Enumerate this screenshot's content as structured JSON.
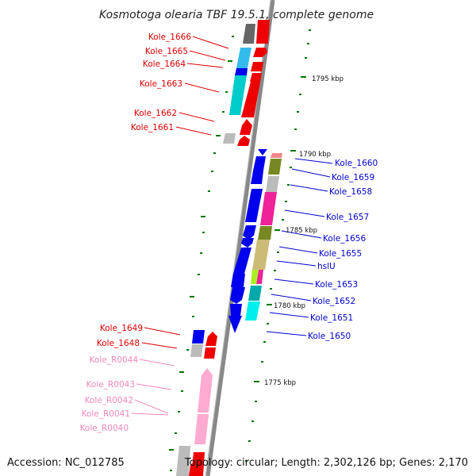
{
  "title": "Kosmotoga olearia TBF 19.5.1, complete genome",
  "footer": {
    "accession": "Accession: NC_012785",
    "summary": "Topology: circular; Length: 2,302,126 bp; Genes: 2,170"
  },
  "kbp_labels": {
    "k1795": "1795 kbp",
    "k1790": "1790 kbp",
    "k1785": "1785 kbp",
    "k1780": "1780 kbp",
    "k1775": "1775 kbp"
  },
  "colors": {
    "red_label": "#dd0000",
    "blue_label": "#0000cc",
    "pink_label": "#ee88bb",
    "backbone": "#888888",
    "tick": "#006600"
  },
  "genes_left": {
    "kole_1666": "Kole_1666",
    "kole_1665": "Kole_1665",
    "kole_1664": "Kole_1664",
    "kole_1663": "Kole_1663",
    "kole_1662": "Kole_1662",
    "kole_1661": "Kole_1661",
    "kole_1649": "Kole_1649",
    "kole_1648": "Kole_1648"
  },
  "rna_left": {
    "r0044": "Kole_R0044",
    "r0043": "Kole_R0043",
    "r0042": "Kole_R0042",
    "r0041": "Kole_R0041",
    "r0040": "Kole_R0040"
  },
  "genes_right": {
    "kole_1660": "Kole_1660",
    "kole_1659": "Kole_1659",
    "kole_1658": "Kole_1658",
    "kole_1657": "Kole_1657",
    "kole_1656": "Kole_1656",
    "kole_1655": "Kole_1655",
    "hslu": "hslU",
    "kole_1653": "Kole_1653",
    "kole_1652": "Kole_1652",
    "kole_1651": "Kole_1651",
    "kole_1650": "Kole_1650"
  }
}
